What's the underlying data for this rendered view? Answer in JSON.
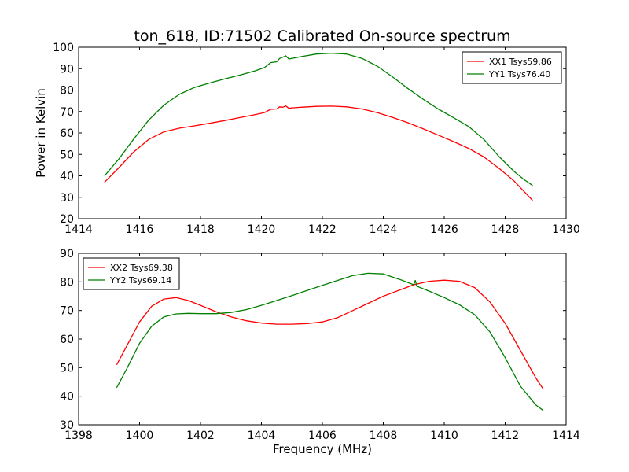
{
  "figure_title": "ton_618, ID:71502 Calibrated On-source spectrum",
  "colors": {
    "red": "#ff0000",
    "green": "#008000"
  },
  "chart_data": [
    {
      "type": "line",
      "xlabel": "",
      "ylabel": "Power in Kelvin",
      "xlim": [
        1414,
        1430
      ],
      "ylim": [
        20,
        100
      ],
      "xticks": [
        1414,
        1416,
        1418,
        1420,
        1422,
        1424,
        1426,
        1428,
        1430
      ],
      "yticks": [
        20,
        30,
        40,
        50,
        60,
        70,
        80,
        90,
        100
      ],
      "grid": false,
      "legend_position": "top-right",
      "series": [
        {
          "name": "XX1 Tsys59.86",
          "color": "#ff0000",
          "x": [
            1414.85,
            1415.3,
            1415.8,
            1416.3,
            1416.8,
            1417.3,
            1417.8,
            1418.3,
            1418.8,
            1419.3,
            1419.8,
            1420.1,
            1420.3,
            1420.5,
            1420.6,
            1420.7,
            1420.8,
            1420.9,
            1421.0,
            1421.3,
            1421.8,
            1422.3,
            1422.8,
            1423.3,
            1423.8,
            1424.3,
            1424.8,
            1425.3,
            1425.8,
            1426.3,
            1426.8,
            1427.3,
            1427.8,
            1428.3,
            1428.6,
            1428.9
          ],
          "y": [
            37,
            43.5,
            51,
            57,
            60.5,
            62.2,
            63.3,
            64.5,
            65.8,
            67.2,
            68.6,
            69.5,
            71.0,
            71.2,
            72.2,
            72.0,
            72.6,
            71.5,
            71.7,
            72.0,
            72.4,
            72.5,
            72.2,
            71.2,
            69.5,
            67.3,
            64.8,
            62.0,
            59.0,
            56.0,
            52.8,
            48.8,
            43.5,
            37.5,
            33.0,
            28.5
          ]
        },
        {
          "name": "YY1 Tsys76.40",
          "color": "#008000",
          "x": [
            1414.85,
            1415.3,
            1415.8,
            1416.3,
            1416.8,
            1417.3,
            1417.8,
            1418.3,
            1418.8,
            1419.3,
            1419.8,
            1420.1,
            1420.3,
            1420.5,
            1420.6,
            1420.7,
            1420.8,
            1420.9,
            1421.0,
            1421.3,
            1421.8,
            1422.3,
            1422.8,
            1423.3,
            1423.8,
            1424.3,
            1424.8,
            1425.3,
            1425.8,
            1426.3,
            1426.8,
            1427.3,
            1427.8,
            1428.3,
            1428.6,
            1428.9
          ],
          "y": [
            40,
            47.5,
            57,
            66,
            73,
            78,
            81.2,
            83.3,
            85.2,
            87.0,
            89.0,
            90.5,
            92.8,
            93.2,
            94.8,
            95.3,
            96.0,
            94.5,
            94.8,
            95.6,
            96.8,
            97.2,
            96.8,
            94.8,
            91.2,
            86.2,
            80.8,
            75.8,
            71.2,
            67.2,
            63.0,
            57.0,
            49.0,
            42.0,
            38.5,
            35.5
          ]
        }
      ]
    },
    {
      "type": "line",
      "xlabel": "Frequency (MHz)",
      "ylabel": "",
      "xlim": [
        1398,
        1414
      ],
      "ylim": [
        30,
        90
      ],
      "xticks": [
        1398,
        1400,
        1402,
        1404,
        1406,
        1408,
        1410,
        1412,
        1414
      ],
      "yticks": [
        30,
        40,
        50,
        60,
        70,
        80,
        90
      ],
      "grid": false,
      "legend_position": "top-left",
      "series": [
        {
          "name": "XX2 Tsys69.38",
          "color": "#ff0000",
          "x": [
            1399.25,
            1399.6,
            1400.0,
            1400.4,
            1400.8,
            1401.2,
            1401.6,
            1402.0,
            1402.5,
            1403.0,
            1403.5,
            1404.0,
            1404.5,
            1405.0,
            1405.5,
            1406.0,
            1406.5,
            1407.0,
            1407.5,
            1408.0,
            1408.5,
            1409.0,
            1409.5,
            1410.0,
            1410.5,
            1411.0,
            1411.5,
            1412.0,
            1412.5,
            1413.0,
            1413.25
          ],
          "y": [
            51,
            58,
            66,
            71.5,
            74,
            74.5,
            73.5,
            71.8,
            69.6,
            67.8,
            66.4,
            65.6,
            65.2,
            65.2,
            65.4,
            66.0,
            67.5,
            70.0,
            72.5,
            75.0,
            77.0,
            79.0,
            80.2,
            80.6,
            80.2,
            78.0,
            73.0,
            65.5,
            56.0,
            46.5,
            42.5
          ]
        },
        {
          "name": "YY2 Tsys69.14",
          "color": "#008000",
          "x": [
            1399.25,
            1399.6,
            1400.0,
            1400.4,
            1400.8,
            1401.2,
            1401.6,
            1402.0,
            1402.5,
            1403.0,
            1403.5,
            1404.0,
            1404.5,
            1405.0,
            1405.5,
            1406.0,
            1406.5,
            1407.0,
            1407.5,
            1408.0,
            1408.5,
            1409.0,
            1409.05,
            1409.1,
            1409.5,
            1410.0,
            1410.5,
            1411.0,
            1411.5,
            1412.0,
            1412.5,
            1413.0,
            1413.25
          ],
          "y": [
            43,
            50,
            58.5,
            64.5,
            67.8,
            68.8,
            69.0,
            68.9,
            68.9,
            69.3,
            70.3,
            71.8,
            73.5,
            75.2,
            77.0,
            78.8,
            80.5,
            82.2,
            83.0,
            82.8,
            81.0,
            79.0,
            80.5,
            78.5,
            76.8,
            74.5,
            72.0,
            68.5,
            62.5,
            53.5,
            43.5,
            37.0,
            35.0
          ]
        }
      ]
    }
  ]
}
